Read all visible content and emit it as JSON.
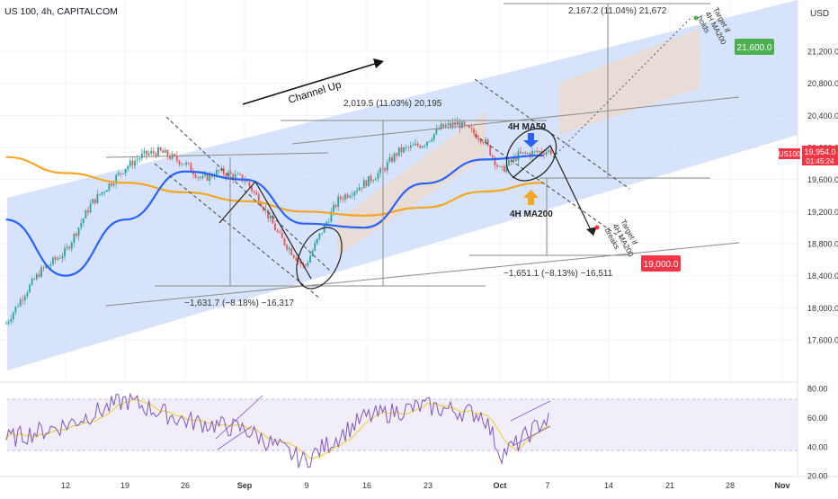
{
  "header": {
    "title": "US 100, 4h, CAPITALCOM",
    "currency": "USD"
  },
  "price_axis": {
    "ticks": [
      "21,200.0",
      "20,800.0",
      "20,400.0",
      "20,000.0",
      "19,600.0",
      "19,200.0",
      "18,800.0",
      "18,400.0",
      "18,000.0",
      "17,600.0"
    ],
    "symbol_tag": "US100",
    "last_price": "19,954.0",
    "countdown": "01:45:24"
  },
  "time_axis": {
    "ticks": [
      "12",
      "19",
      "26",
      "Sep",
      "9",
      "16",
      "23",
      "Oct",
      "7",
      "14",
      "21",
      "28",
      "Nov"
    ]
  },
  "rsi_axis": {
    "ticks": [
      "80.00",
      "60.00",
      "40.00",
      "20.00"
    ]
  },
  "annotations": {
    "channel_up": "Channel Up",
    "measure_1": "2,019.5 (11.03%) 20,195",
    "measure_2": "2,167.2 (11.04%) 21,672",
    "measure_3": "−1,631.7 (−8.18%) −16,317",
    "measure_4": "−1,651.1 (−8.13%) −16,511",
    "ma50_label": "4H MA50",
    "ma200_label": "4H MA200",
    "target_up_lines": [
      "Target if",
      "4H MA200",
      "holds"
    ],
    "target_down_lines": [
      "Target if",
      "4H MA200",
      "breaks"
    ],
    "target_up_value": "21,600.0",
    "target_down_value": "19,000.0"
  },
  "colors": {
    "channel_fill": "#c9daf8",
    "ma50": "#2962ff",
    "ma200": "#f5a623",
    "rsi": "#7e57c2",
    "rsi_ma": "#e8d24b",
    "candle_up": "#26a69a",
    "candle_down": "#ef5350",
    "target_up_bg": "#4caf50",
    "target_down_bg": "#f23645"
  },
  "chart_data": {
    "type": "candlestick",
    "title": "US 100, 4h, CAPITALCOM",
    "ylim": [
      17200,
      21600
    ],
    "date_range_x": [
      "Aug 5",
      "Nov 4"
    ],
    "series": [
      {
        "name": "US100",
        "x": [
          "Aug 5",
          "Aug 7",
          "Aug 9",
          "Aug 12",
          "Aug 15",
          "Aug 19",
          "Aug 21",
          "Aug 23",
          "Aug 26",
          "Aug 28",
          "Aug 30",
          "Sep 2",
          "Sep 4",
          "Sep 6",
          "Sep 9",
          "Sep 11",
          "Sep 13",
          "Sep 16",
          "Sep 18",
          "Sep 20",
          "Sep 23",
          "Sep 25",
          "Sep 27",
          "Sep 30",
          "Oct 2",
          "Oct 4",
          "Oct 7"
        ],
        "close": [
          17800,
          18150,
          18450,
          18700,
          19300,
          19750,
          19900,
          19950,
          19800,
          19600,
          19700,
          19600,
          19300,
          18900,
          18500,
          18950,
          19350,
          19550,
          19700,
          19950,
          20050,
          20250,
          20300,
          20100,
          19700,
          19900,
          19954
        ]
      },
      {
        "name": "4H MA50",
        "x": [
          "Aug 5",
          "Aug 12",
          "Aug 19",
          "Aug 26",
          "Sep 2",
          "Sep 9",
          "Sep 16",
          "Sep 23",
          "Sep 30",
          "Oct 7"
        ],
        "values": [
          19100,
          18400,
          19100,
          19700,
          19600,
          19050,
          19000,
          19550,
          19850,
          19900
        ]
      },
      {
        "name": "4H MA200",
        "x": [
          "Aug 5",
          "Aug 12",
          "Aug 19",
          "Aug 26",
          "Sep 2",
          "Sep 9",
          "Sep 16",
          "Sep 23",
          "Sep 30",
          "Oct 7"
        ],
        "values": [
          19880,
          19680,
          19560,
          19440,
          19330,
          19200,
          19150,
          19250,
          19450,
          19560
        ]
      }
    ],
    "rsi": {
      "ylim": [
        20,
        80
      ],
      "x": [
        "Aug 5",
        "Aug 12",
        "Aug 19",
        "Aug 26",
        "Sep 2",
        "Sep 9",
        "Sep 16",
        "Sep 23",
        "Sep 30",
        "Oct 2",
        "Oct 4",
        "Oct 7"
      ],
      "values": [
        45,
        55,
        72,
        58,
        52,
        30,
        60,
        68,
        62,
        35,
        42,
        58
      ]
    },
    "levels": {
      "target_up": 21600,
      "target_down": 19000,
      "last": 19954
    }
  }
}
